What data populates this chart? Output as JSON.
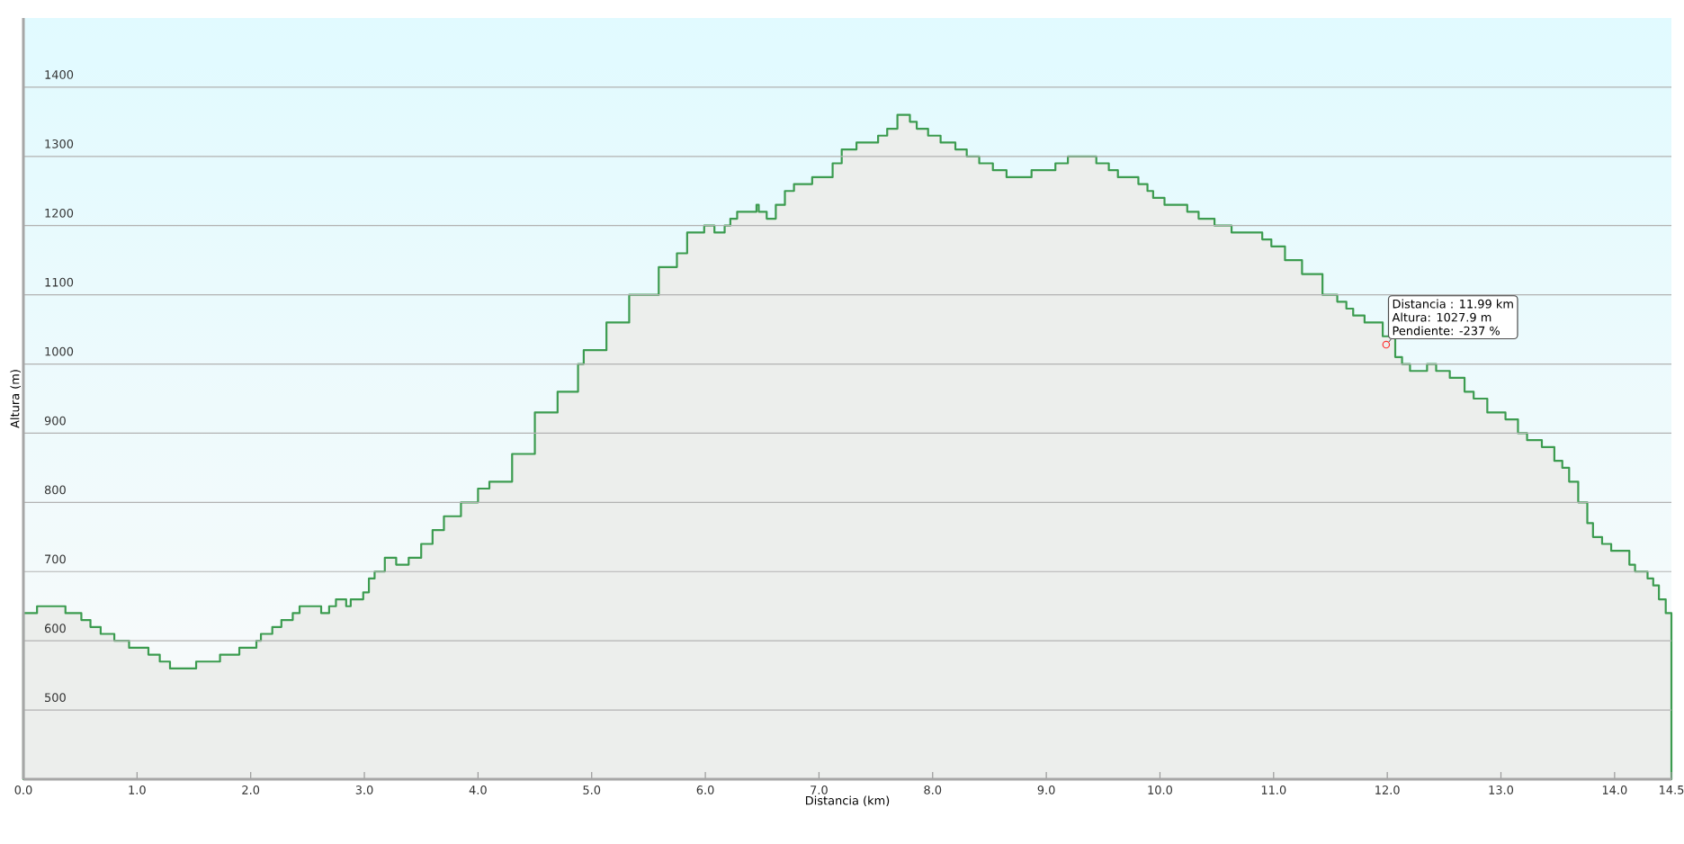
{
  "chart_data": {
    "type": "area",
    "x": [
      0,
      0.12,
      0.37,
      0.51,
      0.59,
      0.68,
      0.8,
      0.93,
      1.1,
      1.2,
      1.29,
      1.52,
      1.73,
      1.9,
      2.05,
      2.09,
      2.19,
      2.27,
      2.37,
      2.43,
      2.62,
      2.69,
      2.75,
      2.84,
      2.88,
      2.99,
      3.04,
      3.09,
      3.18,
      3.28,
      3.39,
      3.5,
      3.6,
      3.7,
      3.85,
      4.0,
      4.1,
      4.3,
      4.5,
      4.7,
      4.88,
      4.93,
      5.13,
      5.33,
      5.59,
      5.75,
      5.84,
      5.99,
      6.08,
      6.17,
      6.22,
      6.28,
      6.45,
      6.47,
      6.54,
      6.62,
      6.7,
      6.78,
      6.94,
      7.12,
      7.2,
      7.33,
      7.52,
      7.6,
      7.69,
      7.8,
      7.86,
      7.96,
      8.07,
      8.2,
      8.3,
      8.41,
      8.53,
      8.65,
      8.87,
      9.08,
      9.19,
      9.44,
      9.55,
      9.63,
      9.81,
      9.89,
      9.94,
      10.04,
      10.24,
      10.34,
      10.48,
      10.63,
      10.9,
      10.98,
      11.1,
      11.25,
      11.43,
      11.56,
      11.64,
      11.7,
      11.8,
      11.96,
      12.07,
      12.13,
      12.2,
      12.35,
      12.43,
      12.55,
      12.68,
      12.76,
      12.88,
      13.04,
      13.15,
      13.23,
      13.36,
      13.47,
      13.54,
      13.6,
      13.68,
      13.76,
      13.81,
      13.89,
      13.97,
      14.13,
      14.18,
      14.29,
      14.34,
      14.39,
      14.45,
      14.5
    ],
    "values": [
      640,
      650,
      640,
      630,
      620,
      610,
      600,
      590,
      580,
      570,
      560,
      570,
      580,
      590,
      600,
      610,
      620,
      630,
      640,
      650,
      640,
      650,
      660,
      650,
      660,
      670,
      690,
      700,
      720,
      710,
      720,
      740,
      760,
      780,
      800,
      820,
      830,
      870,
      930,
      960,
      1000,
      1020,
      1060,
      1100,
      1140,
      1160,
      1190,
      1200,
      1190,
      1200,
      1210,
      1220,
      1230,
      1220,
      1210,
      1230,
      1250,
      1260,
      1270,
      1290,
      1310,
      1320,
      1330,
      1340,
      1360,
      1350,
      1340,
      1330,
      1320,
      1310,
      1300,
      1290,
      1280,
      1270,
      1280,
      1290,
      1300,
      1290,
      1280,
      1270,
      1260,
      1250,
      1240,
      1230,
      1220,
      1210,
      1200,
      1190,
      1180,
      1170,
      1150,
      1130,
      1100,
      1090,
      1080,
      1070,
      1060,
      1040,
      1010,
      1000,
      990,
      1000,
      990,
      980,
      960,
      950,
      930,
      920,
      900,
      890,
      880,
      860,
      850,
      830,
      800,
      770,
      750,
      740,
      730,
      710,
      700,
      690,
      680,
      660,
      640,
      640
    ],
    "color": "#3c9c50",
    "xlabel": "Distancia  (km)",
    "ylabel": "Altura (m)",
    "xlim": [
      0,
      14.5
    ],
    "ylim": [
      400,
      1500
    ],
    "xticks": [
      {
        "value": 0,
        "label": "0.0"
      },
      {
        "value": 1,
        "label": "1.0"
      },
      {
        "value": 2,
        "label": "2.0"
      },
      {
        "value": 3,
        "label": "3.0"
      },
      {
        "value": 4,
        "label": "4.0"
      },
      {
        "value": 5,
        "label": "5.0"
      },
      {
        "value": 6,
        "label": "6.0"
      },
      {
        "value": 7,
        "label": "7.0"
      },
      {
        "value": 8,
        "label": "8.0"
      },
      {
        "value": 9,
        "label": "9.0"
      },
      {
        "value": 10,
        "label": "10.0"
      },
      {
        "value": 11,
        "label": "11.0"
      },
      {
        "value": 12,
        "label": "12.0"
      },
      {
        "value": 13,
        "label": "13.0"
      },
      {
        "value": 14,
        "label": "14.0"
      },
      {
        "value": 14.5,
        "label": "14.5"
      }
    ],
    "yticks": [
      500,
      600,
      700,
      800,
      900,
      1000,
      1100,
      1200,
      1300,
      1400
    ],
    "grid": "y",
    "annotations": [
      "Distancia : 11.99 km",
      "Altura: 1027.9 m",
      {
        "text": "Pendiente: -237 %",
        "x": 11.99,
        "y": 1027.9
      }
    ]
  }
}
